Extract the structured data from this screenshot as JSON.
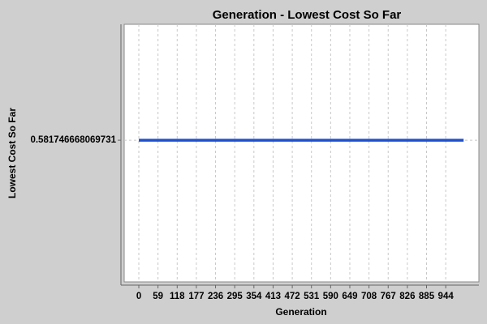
{
  "chart_data": {
    "type": "line",
    "title": "Generation - Lowest Cost So Far",
    "x_label": "Generation",
    "y_label": "Lowest Cost So Far",
    "x": [
      0,
      999
    ],
    "series": [
      {
        "name": "Lowest Cost So Far",
        "color": "#1f4fcf",
        "values": [
          0.581746668069731,
          0.581746668069731
        ]
      }
    ],
    "xlim": [
      -45,
      1046
    ],
    "xticks": [
      0,
      59,
      118,
      177,
      236,
      295,
      354,
      413,
      472,
      531,
      590,
      649,
      708,
      767,
      826,
      885,
      944
    ],
    "ylim": [
      0.58174666806972,
      0.58174666806974
    ],
    "yticks": [
      0.581746668069731
    ],
    "grid": true
  }
}
